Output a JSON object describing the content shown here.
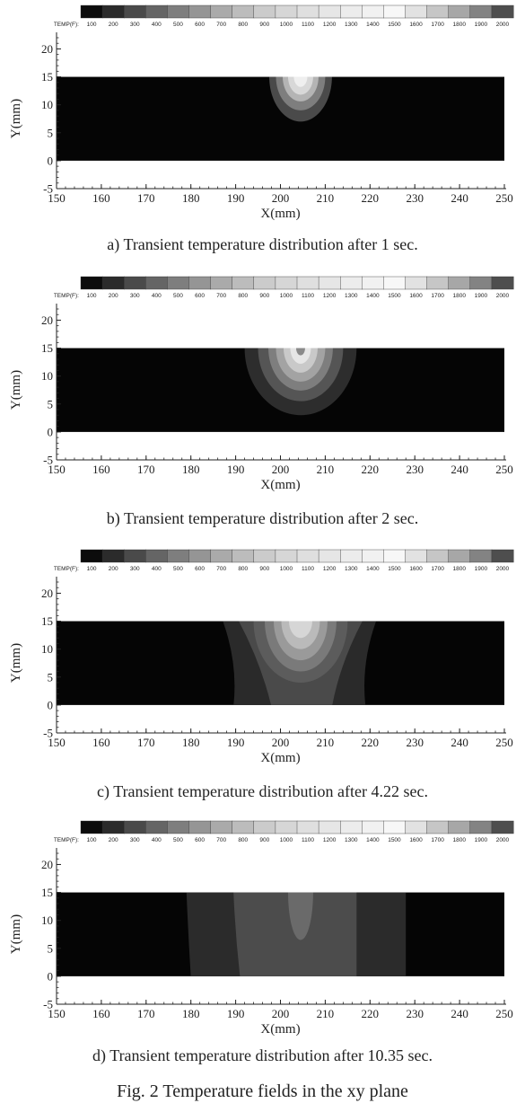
{
  "figure_caption": "Fig. 2  Temperature fields in the xy plane",
  "colorbar": {
    "label": "TEMP(F):",
    "levels": [
      100,
      200,
      300,
      400,
      500,
      600,
      700,
      800,
      900,
      1000,
      1100,
      1200,
      1300,
      1400,
      1500,
      1600,
      1700,
      1800,
      1900,
      2000
    ],
    "colors": [
      "#0c0c0c",
      "#2b2b2b",
      "#4a4a4a",
      "#656565",
      "#7e7e7e",
      "#959595",
      "#aaaaaa",
      "#bcbcbc",
      "#cbcbcb",
      "#d6d6d6",
      "#dfdfdf",
      "#e6e6e6",
      "#ececec",
      "#f1f1f1",
      "#f7f7f7",
      "#e2e2e2",
      "#c6c6c6",
      "#a7a7a7",
      "#838383",
      "#4e4e4e"
    ]
  },
  "chart_data": [
    {
      "type": "heatmap",
      "caption": "a) Transient temperature distribution after 1 sec.",
      "xlabel": "X(mm)",
      "ylabel": "Y(mm)",
      "xlim": [
        150,
        250
      ],
      "ylim": [
        -5,
        22
      ],
      "xticks": [
        150,
        160,
        170,
        180,
        190,
        200,
        210,
        220,
        230,
        240,
        250
      ],
      "yticks": [
        -5,
        0,
        5,
        10,
        15,
        20
      ],
      "plate": {
        "x": [
          150,
          250
        ],
        "y": [
          0,
          15
        ]
      },
      "contours": [
        {
          "shape": "bulb",
          "cx": 204.5,
          "top": 15,
          "half_width": 7,
          "depth": 8,
          "level": 300,
          "color": "#4a4a4a"
        },
        {
          "shape": "bulb",
          "cx": 204.5,
          "top": 15,
          "half_width": 5.5,
          "depth": 6,
          "level": 600,
          "color": "#7e7e7e"
        },
        {
          "shape": "bulb",
          "cx": 204.5,
          "top": 15,
          "half_width": 4,
          "depth": 4.4,
          "level": 1000,
          "color": "#b4b4b4"
        },
        {
          "shape": "bulb",
          "cx": 204.5,
          "top": 15,
          "half_width": 2.8,
          "depth": 3.2,
          "level": 1400,
          "color": "#d8d8d8"
        },
        {
          "shape": "bulb",
          "cx": 204.5,
          "top": 15,
          "half_width": 1.5,
          "depth": 1.8,
          "level": 1700,
          "color": "#efefef"
        }
      ]
    },
    {
      "type": "heatmap",
      "caption": "b) Transient temperature distribution after 2 sec.",
      "xlabel": "X(mm)",
      "ylabel": "Y(mm)",
      "xlim": [
        150,
        250
      ],
      "ylim": [
        -5,
        22
      ],
      "xticks": [
        150,
        160,
        170,
        180,
        190,
        200,
        210,
        220,
        230,
        240,
        250
      ],
      "yticks": [
        -5,
        0,
        5,
        10,
        15,
        20
      ],
      "plate": {
        "x": [
          150,
          250
        ],
        "y": [
          0,
          15
        ]
      },
      "contours": [
        {
          "shape": "bulb",
          "cx": 204.5,
          "top": 15,
          "half_width": 12.5,
          "depth": 12,
          "level": 200,
          "color": "#2d2d2d"
        },
        {
          "shape": "bulb",
          "cx": 204.5,
          "top": 15,
          "half_width": 9.5,
          "depth": 9.5,
          "level": 400,
          "color": "#555555"
        },
        {
          "shape": "bulb",
          "cx": 204.5,
          "top": 15,
          "half_width": 7.2,
          "depth": 7.6,
          "level": 700,
          "color": "#7e7e7e"
        },
        {
          "shape": "bulb",
          "cx": 204.5,
          "top": 15,
          "half_width": 5.5,
          "depth": 6,
          "level": 1000,
          "color": "#a3a3a3"
        },
        {
          "shape": "bulb",
          "cx": 204.5,
          "top": 15,
          "half_width": 3.8,
          "depth": 4.4,
          "level": 1300,
          "color": "#c9c9c9"
        },
        {
          "shape": "bulb",
          "cx": 204.5,
          "top": 15,
          "half_width": 2.3,
          "depth": 2.8,
          "level": 1600,
          "color": "#e6e6e6"
        },
        {
          "shape": "bulb",
          "cx": 204.5,
          "top": 15,
          "half_width": 1.0,
          "depth": 1.3,
          "level": 2000,
          "color": "#8a8a8a"
        }
      ]
    },
    {
      "type": "heatmap",
      "caption": "c) Transient temperature distribution after 4.22 sec.",
      "xlabel": "X(mm)",
      "ylabel": "Y(mm)",
      "xlim": [
        150,
        250
      ],
      "ylim": [
        -5,
        22
      ],
      "xticks": [
        150,
        160,
        170,
        180,
        190,
        200,
        210,
        220,
        230,
        240,
        250
      ],
      "yticks": [
        -5,
        0,
        5,
        10,
        15,
        20
      ],
      "plate": {
        "x": [
          150,
          250
        ],
        "y": [
          0,
          15
        ]
      },
      "contours": [
        {
          "shape": "band",
          "top": [
            187,
            221.5
          ],
          "bottom": [
            189.5,
            219
          ],
          "waist": [
            191.5,
            217
          ],
          "level": 200,
          "color": "#2a2a2a"
        },
        {
          "shape": "band",
          "top": [
            190.5,
            218.5
          ],
          "bottom": [
            198,
            211.5
          ],
          "waist": [
            197,
            212
          ],
          "level": 300,
          "color": "#4a4a4a"
        },
        {
          "shape": "bulb",
          "cx": 204.5,
          "top": 15,
          "half_width": 10.5,
          "depth": 11,
          "level": 500,
          "color": "#5c5c5c"
        },
        {
          "shape": "bulb",
          "cx": 204.5,
          "top": 15,
          "half_width": 8,
          "depth": 9,
          "level": 700,
          "color": "#7a7a7a"
        },
        {
          "shape": "bulb",
          "cx": 204.5,
          "top": 15,
          "half_width": 6,
          "depth": 7,
          "level": 900,
          "color": "#9a9a9a"
        },
        {
          "shape": "bulb",
          "cx": 204.5,
          "top": 15,
          "half_width": 4.3,
          "depth": 5,
          "level": 1100,
          "color": "#bababa"
        },
        {
          "shape": "bulb",
          "cx": 204.5,
          "top": 15,
          "half_width": 2.6,
          "depth": 3,
          "level": 1300,
          "color": "#d6d6d6"
        }
      ]
    },
    {
      "type": "heatmap",
      "caption": "d) Transient temperature distribution after 10.35 sec.",
      "xlabel": "X(mm)",
      "ylabel": "Y(mm)",
      "xlim": [
        150,
        250
      ],
      "ylim": [
        -5,
        22
      ],
      "xticks": [
        150,
        160,
        170,
        180,
        190,
        200,
        210,
        220,
        230,
        240,
        250
      ],
      "yticks": [
        -5,
        0,
        5,
        10,
        15,
        20
      ],
      "plate": {
        "x": [
          150,
          250
        ],
        "y": [
          0,
          15
        ]
      },
      "contours": [
        {
          "shape": "band",
          "top": [
            179,
            228
          ],
          "bottom": [
            180,
            228
          ],
          "waist": [
            179.5,
            228
          ],
          "level": 200,
          "color": "#2b2b2b"
        },
        {
          "shape": "band",
          "top": [
            189.5,
            217
          ],
          "bottom": [
            191,
            217
          ],
          "waist": [
            190,
            217
          ],
          "level": 300,
          "color": "#4c4c4c"
        },
        {
          "shape": "bulb",
          "cx": 204.5,
          "top": 15,
          "half_width": 2.8,
          "depth": 8.5,
          "level": 400,
          "color": "#6a6a6a"
        }
      ]
    }
  ]
}
